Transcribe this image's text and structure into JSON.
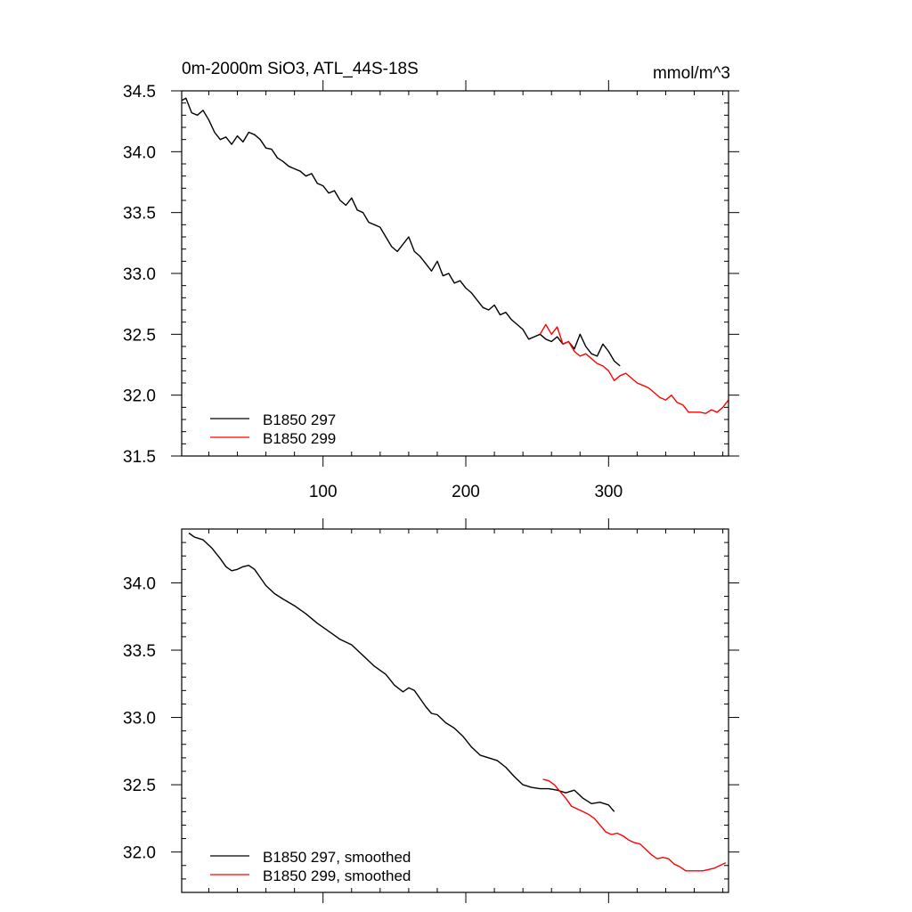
{
  "chart_data": [
    {
      "type": "line",
      "title": "0m-2000m SiO3, ATL_44S-18S",
      "units": "mmol/m^3",
      "xlim": [
        1,
        384
      ],
      "ylim": [
        31.5,
        34.5
      ],
      "xticks": [
        100,
        200,
        300
      ],
      "yticks": [
        31.5,
        32.0,
        32.5,
        33.0,
        33.5,
        34.0,
        34.5
      ],
      "ytick_labels": [
        "31.5",
        "32.0",
        "32.5",
        "33.0",
        "33.5",
        "34.0",
        "34.5"
      ],
      "legend": "bottom-left",
      "series": [
        {
          "name": "B1850 297",
          "color": "#000000",
          "x": [
            1,
            4,
            8,
            12,
            16,
            20,
            24,
            28,
            32,
            36,
            40,
            44,
            48,
            52,
            56,
            60,
            64,
            68,
            72,
            76,
            80,
            84,
            88,
            92,
            96,
            100,
            104,
            108,
            112,
            116,
            120,
            124,
            128,
            132,
            136,
            140,
            144,
            148,
            152,
            156,
            160,
            164,
            168,
            172,
            176,
            180,
            184,
            188,
            192,
            196,
            200,
            204,
            208,
            212,
            216,
            220,
            224,
            228,
            232,
            236,
            240,
            244,
            248,
            252,
            256,
            260,
            264,
            268,
            272,
            276,
            280,
            284,
            288,
            292,
            296,
            300,
            304,
            308
          ],
          "values": [
            34.42,
            34.44,
            34.32,
            34.3,
            34.34,
            34.26,
            34.16,
            34.1,
            34.12,
            34.06,
            34.13,
            34.08,
            34.16,
            34.14,
            34.1,
            34.03,
            34.02,
            33.95,
            33.92,
            33.88,
            33.86,
            33.84,
            33.8,
            33.82,
            33.74,
            33.72,
            33.66,
            33.68,
            33.6,
            33.56,
            33.62,
            33.52,
            33.5,
            33.42,
            33.4,
            33.38,
            33.3,
            33.22,
            33.18,
            33.24,
            33.3,
            33.18,
            33.14,
            33.08,
            33.02,
            33.1,
            32.98,
            33.0,
            32.92,
            32.94,
            32.88,
            32.84,
            32.78,
            32.72,
            32.7,
            32.74,
            32.66,
            32.68,
            32.62,
            32.58,
            32.54,
            32.46,
            32.48,
            32.5,
            32.46,
            32.44,
            32.48,
            32.42,
            32.44,
            32.38,
            32.5,
            32.4,
            32.34,
            32.32,
            32.42,
            32.36,
            32.28,
            32.24
          ]
        },
        {
          "name": "B1850 299",
          "color": "#ff0000",
          "x": [
            252,
            256,
            260,
            264,
            268,
            272,
            276,
            280,
            284,
            288,
            292,
            296,
            300,
            304,
            308,
            312,
            316,
            320,
            324,
            328,
            332,
            336,
            340,
            344,
            348,
            352,
            356,
            360,
            364,
            368,
            372,
            376,
            380,
            384
          ],
          "values": [
            32.5,
            32.58,
            32.5,
            32.56,
            32.42,
            32.44,
            32.36,
            32.32,
            32.34,
            32.3,
            32.26,
            32.24,
            32.2,
            32.12,
            32.16,
            32.18,
            32.14,
            32.1,
            32.08,
            32.06,
            32.02,
            31.98,
            31.96,
            32.0,
            31.94,
            31.92,
            31.86,
            31.86,
            31.86,
            31.85,
            31.88,
            31.86,
            31.9,
            31.96
          ]
        }
      ]
    },
    {
      "type": "line",
      "xlim": [
        1,
        384
      ],
      "ylim": [
        31.7,
        34.4
      ],
      "xticks": [
        100,
        200,
        300
      ],
      "yticks": [
        32.0,
        32.5,
        33.0,
        33.5,
        34.0
      ],
      "ytick_labels": [
        "32.0",
        "32.5",
        "33.0",
        "33.5",
        "34.0"
      ],
      "legend": "bottom-left",
      "series": [
        {
          "name": "B1850 297, smoothed",
          "color": "#000000",
          "x": [
            6,
            10,
            16,
            22,
            28,
            32,
            36,
            40,
            44,
            48,
            52,
            56,
            60,
            66,
            72,
            80,
            88,
            96,
            104,
            112,
            120,
            128,
            136,
            144,
            150,
            156,
            160,
            164,
            168,
            172,
            176,
            180,
            186,
            192,
            198,
            204,
            210,
            216,
            222,
            228,
            234,
            240,
            246,
            252,
            258,
            264,
            270,
            276,
            282,
            288,
            294,
            300,
            304
          ],
          "values": [
            34.37,
            34.34,
            34.32,
            34.26,
            34.18,
            34.12,
            34.09,
            34.1,
            34.12,
            34.13,
            34.1,
            34.04,
            33.98,
            33.92,
            33.88,
            33.83,
            33.77,
            33.7,
            33.64,
            33.58,
            33.54,
            33.46,
            33.38,
            33.32,
            33.24,
            33.19,
            33.22,
            33.2,
            33.14,
            33.08,
            33.03,
            33.02,
            32.96,
            32.92,
            32.86,
            32.78,
            32.72,
            32.7,
            32.68,
            32.63,
            32.56,
            32.5,
            32.48,
            32.47,
            32.47,
            32.46,
            32.44,
            32.46,
            32.4,
            32.36,
            32.37,
            32.35,
            32.3
          ]
        },
        {
          "name": "B1850 299, smoothed",
          "color": "#ff0000",
          "x": [
            254,
            258,
            262,
            266,
            270,
            274,
            278,
            282,
            286,
            290,
            294,
            298,
            302,
            306,
            310,
            314,
            318,
            322,
            326,
            330,
            334,
            338,
            342,
            346,
            350,
            354,
            358,
            362,
            366,
            370,
            374,
            378,
            382
          ],
          "values": [
            32.54,
            32.53,
            32.5,
            32.45,
            32.4,
            32.34,
            32.32,
            32.3,
            32.28,
            32.25,
            32.2,
            32.15,
            32.13,
            32.14,
            32.12,
            32.09,
            32.07,
            32.06,
            32.02,
            31.98,
            31.95,
            31.96,
            31.95,
            31.91,
            31.89,
            31.86,
            31.86,
            31.86,
            31.86,
            31.87,
            31.88,
            31.9,
            31.92
          ]
        }
      ]
    }
  ]
}
